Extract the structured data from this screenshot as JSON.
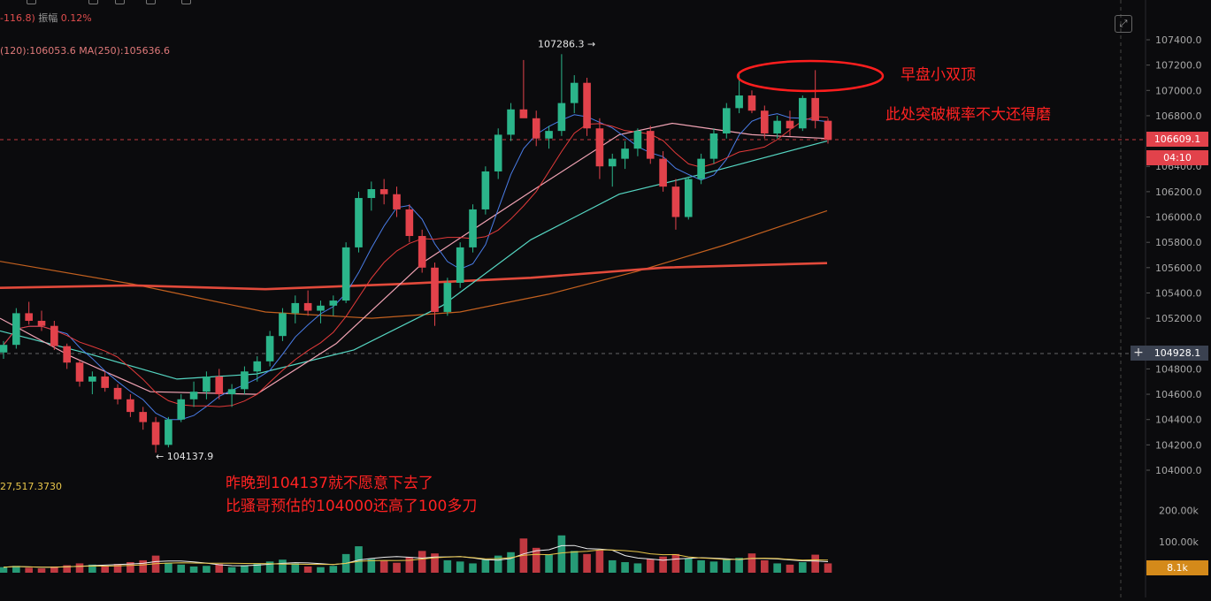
{
  "header": {
    "change": "-116.8)",
    "amplitude_label": "振幅",
    "amplitude_value": "0.12%"
  },
  "ma_legend": "(120):106053.6  MA(250):105636.6",
  "volume_legend": "27,517.3730",
  "price_axis_labels": [
    "107400.0",
    "107200.0",
    "107000.0",
    "106800.0",
    "106400.0",
    "106200.0",
    "106000.0",
    "105800.0",
    "105600.0",
    "105400.0",
    "105200.0",
    "104800.0",
    "104600.0",
    "104400.0",
    "104200.0",
    "104000.0"
  ],
  "volume_axis_labels": [
    "200.00k",
    "100.00k"
  ],
  "current_price_tag": "106609.1",
  "countdown_tag": "04:10",
  "crosshair_price_tag": "104928.1",
  "volume_current_tag": "8.1k",
  "high_marker": "107286.3 →",
  "low_marker": "← 104137.9",
  "annotations": {
    "double_top": "早盘小双顶",
    "breakout_note": "此处突破概率不大还得磨",
    "night_note_1": "昨晚到104137就不愿意下去了",
    "night_note_2": "比骚哥预估的104000还高了100多刀"
  },
  "colors": {
    "up": "#2bb58a",
    "down": "#e2424b",
    "ma_pink": "#f1a3b4",
    "ma_cyan": "#55d6c2",
    "ma_blue": "#4a7de8",
    "ma_red": "#e43a3a",
    "ma_orange": "#c2601f",
    "ma_thick": "#e24a3b",
    "annotation": "#ff2222"
  },
  "chart_data": {
    "type": "candlestick",
    "y_axis": {
      "min": 104000,
      "max": 107400,
      "unit": "USDT"
    },
    "price_high": 107286.3,
    "price_low": 104137.9,
    "current_price": 106609.1,
    "crosshair_price": 104928.1,
    "candles_ohlc": [
      [
        104930,
        105020,
        104880,
        104990
      ],
      [
        104990,
        105280,
        104960,
        105240
      ],
      [
        105240,
        105330,
        105150,
        105180
      ],
      [
        105180,
        105260,
        105100,
        105140
      ],
      [
        105140,
        105180,
        104950,
        104980
      ],
      [
        104980,
        105000,
        104800,
        104850
      ],
      [
        104850,
        104870,
        104660,
        104700
      ],
      [
        104700,
        104780,
        104600,
        104740
      ],
      [
        104740,
        104780,
        104620,
        104650
      ],
      [
        104650,
        104680,
        104520,
        104560
      ],
      [
        104560,
        104600,
        104420,
        104460
      ],
      [
        104460,
        104500,
        104320,
        104380
      ],
      [
        104380,
        104420,
        104137.9,
        104200
      ],
      [
        104200,
        104420,
        104180,
        104400
      ],
      [
        104400,
        104600,
        104380,
        104560
      ],
      [
        104560,
        104700,
        104500,
        104620
      ],
      [
        104620,
        104780,
        104560,
        104740
      ],
      [
        104740,
        104800,
        104560,
        104600
      ],
      [
        104600,
        104680,
        104500,
        104640
      ],
      [
        104640,
        104820,
        104600,
        104780
      ],
      [
        104780,
        104900,
        104700,
        104860
      ],
      [
        104860,
        105100,
        104820,
        105060
      ],
      [
        105060,
        105280,
        105020,
        105240
      ],
      [
        105240,
        105380,
        105160,
        105320
      ],
      [
        105320,
        105420,
        105220,
        105260
      ],
      [
        105260,
        105340,
        105160,
        105300
      ],
      [
        105300,
        105380,
        105220,
        105340
      ],
      [
        105340,
        105800,
        105320,
        105760
      ],
      [
        105760,
        106200,
        105720,
        106150
      ],
      [
        106150,
        106280,
        106050,
        106220
      ],
      [
        106220,
        106300,
        106100,
        106180
      ],
      [
        106180,
        106240,
        106000,
        106060
      ],
      [
        106060,
        106100,
        105800,
        105850
      ],
      [
        105850,
        105900,
        105560,
        105600
      ],
      [
        105600,
        105640,
        105140,
        105250
      ],
      [
        105250,
        105520,
        105220,
        105480
      ],
      [
        105480,
        105800,
        105440,
        105760
      ],
      [
        105760,
        106100,
        105720,
        106060
      ],
      [
        106060,
        106400,
        106020,
        106360
      ],
      [
        106360,
        106700,
        106300,
        106650
      ],
      [
        106650,
        106900,
        106600,
        106850
      ],
      [
        106850,
        107240,
        106820,
        106780
      ],
      [
        106780,
        106840,
        106560,
        106620
      ],
      [
        106620,
        106720,
        106540,
        106680
      ],
      [
        106680,
        107286.3,
        106640,
        106900
      ],
      [
        106900,
        107120,
        106820,
        107060
      ],
      [
        107060,
        107100,
        106640,
        106700
      ],
      [
        106700,
        106780,
        106300,
        106400
      ],
      [
        106400,
        106500,
        106240,
        106460
      ],
      [
        106460,
        106600,
        106380,
        106540
      ],
      [
        106540,
        106700,
        106480,
        106680
      ],
      [
        106680,
        106720,
        106420,
        106460
      ],
      [
        106460,
        106520,
        106200,
        106240
      ],
      [
        106240,
        106300,
        105900,
        106000
      ],
      [
        106000,
        106320,
        105980,
        106300
      ],
      [
        106300,
        106500,
        106260,
        106460
      ],
      [
        106460,
        106700,
        106420,
        106660
      ],
      [
        106660,
        106900,
        106620,
        106860
      ],
      [
        106860,
        107140,
        106820,
        106960
      ],
      [
        106960,
        107000,
        106820,
        106840
      ],
      [
        106840,
        106880,
        106620,
        106660
      ],
      [
        106660,
        106800,
        106620,
        106760
      ],
      [
        106760,
        106840,
        106640,
        106700
      ],
      [
        106700,
        106960,
        106680,
        106940
      ],
      [
        106940,
        107160,
        106700,
        106760
      ],
      [
        106760,
        106780,
        106580,
        106609.1
      ]
    ],
    "volume_range": {
      "min": 0,
      "max": 250000
    },
    "volumes_k": [
      18,
      22,
      16,
      14,
      20,
      24,
      30,
      26,
      22,
      28,
      34,
      40,
      55,
      32,
      26,
      20,
      22,
      28,
      18,
      24,
      30,
      36,
      42,
      30,
      20,
      18,
      22,
      60,
      85,
      44,
      38,
      32,
      50,
      70,
      62,
      40,
      36,
      30,
      42,
      55,
      66,
      110,
      80,
      58,
      120,
      70,
      60,
      72,
      40,
      34,
      30,
      44,
      52,
      60,
      46,
      40,
      36,
      42,
      48,
      62,
      40,
      30,
      26,
      34,
      58,
      30
    ]
  }
}
